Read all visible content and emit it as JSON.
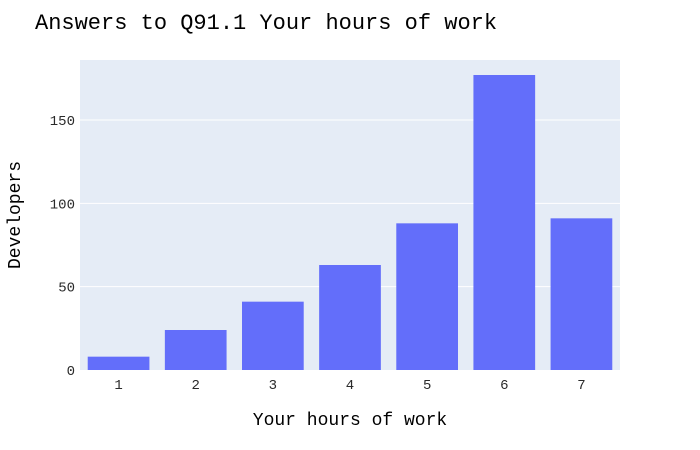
{
  "chart_data": {
    "type": "bar",
    "title": "Answers to Q91.1 Your hours of work",
    "xlabel": "Your hours of work",
    "ylabel": "Developers",
    "categories": [
      "1",
      "2",
      "3",
      "4",
      "5",
      "6",
      "7"
    ],
    "values": [
      8,
      24,
      41,
      63,
      88,
      177,
      91
    ],
    "ylim": [
      0,
      186
    ],
    "yticks": [
      0,
      50,
      100,
      150
    ],
    "grid": true,
    "legend": "none",
    "colors": {
      "bar": "#636efa",
      "plot_background": "#e5ecf6",
      "gridline": "#ffffff"
    }
  }
}
